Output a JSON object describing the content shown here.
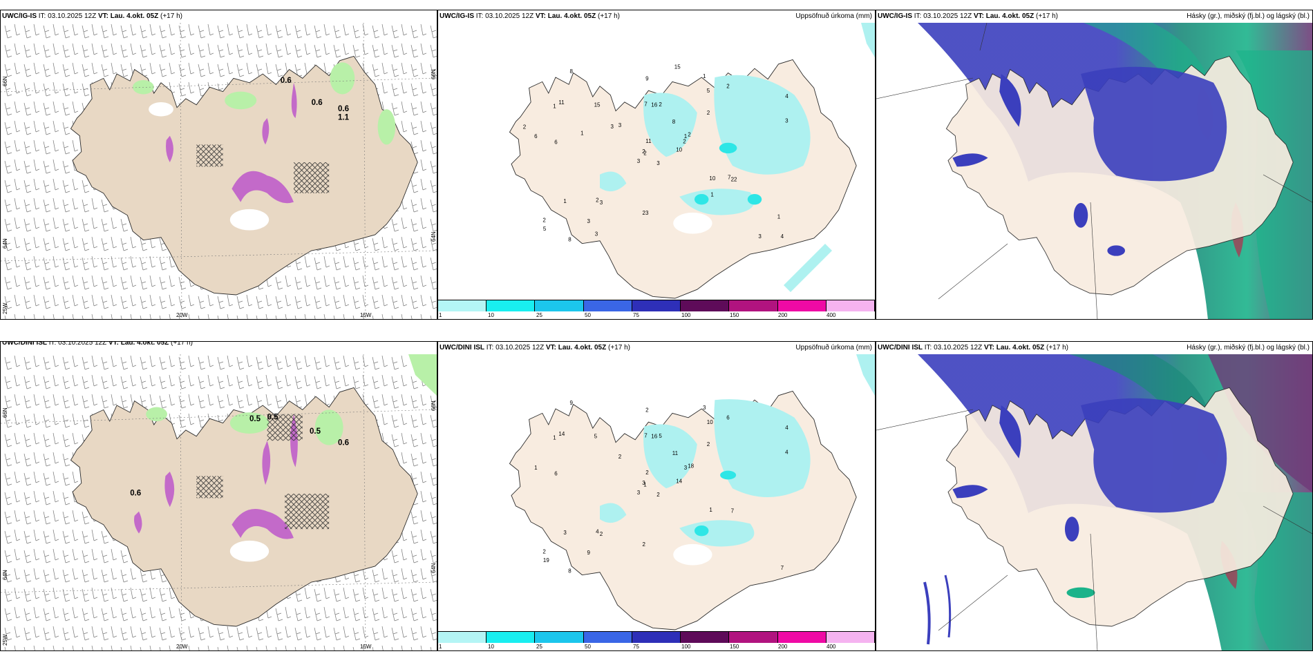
{
  "rows": [
    {
      "model": "UWC/IG-IS",
      "it_label": "IT:",
      "it_value": "03.10.2025 12Z",
      "vt_label": "VT: Lau. 4.okt. 05Z",
      "lead": "(+17 h)",
      "panel1_point_values": [
        "0.6",
        "0.6",
        "0.6",
        "1.1"
      ],
      "panel2_right_title": "Uppsöfnuð úrkoma (mm)",
      "panel2_numbers": [
        "3",
        "1",
        "2",
        "2",
        "1",
        "3",
        "1",
        "2",
        "5",
        "10",
        "8",
        "4",
        "6",
        "4",
        "3",
        "2",
        "8",
        "7",
        "8",
        "1",
        "3",
        "5",
        "3",
        "16",
        "2",
        "22",
        "11",
        "9",
        "6",
        "10",
        "3",
        "2",
        "23",
        "11",
        "15",
        "2",
        "2",
        "3",
        "1",
        "7",
        "15",
        "3",
        "1",
        "1",
        "3",
        "2",
        "2"
      ],
      "panel3_right_title": "Hásky (gr.), miðský (fj.bl.) og lágský (bl.)"
    },
    {
      "model": "UWC/DINI ISL",
      "it_label": "IT:",
      "it_value": "03.10.2025 12Z",
      "vt_label": "VT: Lau. 4.okt. 05Z",
      "lead": "(+17 h)",
      "panel1_point_values": [
        "0.6",
        "0.5",
        "0.5",
        "0.5",
        "0.6"
      ],
      "panel2_right_title": "Uppsöfnuð úrkoma (mm)",
      "panel2_numbers": [
        "2",
        "1",
        "1",
        "2",
        "3",
        "2",
        "3",
        "5",
        "10",
        "14",
        "9",
        "7",
        "6",
        "4",
        "3",
        "2",
        "8",
        "7",
        "11",
        "3",
        "2",
        "19",
        "9",
        "16",
        "18",
        "7",
        "14",
        "2",
        "1",
        "1",
        "4",
        "3",
        "2",
        "2",
        "5",
        "6",
        "4"
      ],
      "panel3_right_title": "Hásky (gr.), miðský (fj.bl.) og lágský (bl.)"
    }
  ],
  "axes": {
    "lat_labels": [
      "66N",
      "64N"
    ],
    "lon_labels": [
      "25W",
      "20W",
      "15W"
    ]
  },
  "colorbar": {
    "ticks": [
      "1",
      "10",
      "25",
      "50",
      "75",
      "100",
      "150",
      "200",
      "400"
    ],
    "colors": [
      "#b4f5f5",
      "#19eef0",
      "#1cc6ec",
      "#3a66e6",
      "#2e2fb8",
      "#5e0b59",
      "#b1137f",
      "#ef0aa5",
      "#f5b3f0"
    ]
  },
  "colors": {
    "land": "#f8ece0",
    "land_panel1": "#e8d8c4",
    "coast": "#2a2a2a",
    "precip_light": "#aef1f0",
    "precip_mid": "#2ee6e6",
    "cloud_high": "#6f3a78",
    "cloud_mid": "#3b3fbd",
    "cloud_low": "#1bb38a",
    "snow_green": "#b8f0a8",
    "snow_magenta": "#c36ac9"
  }
}
